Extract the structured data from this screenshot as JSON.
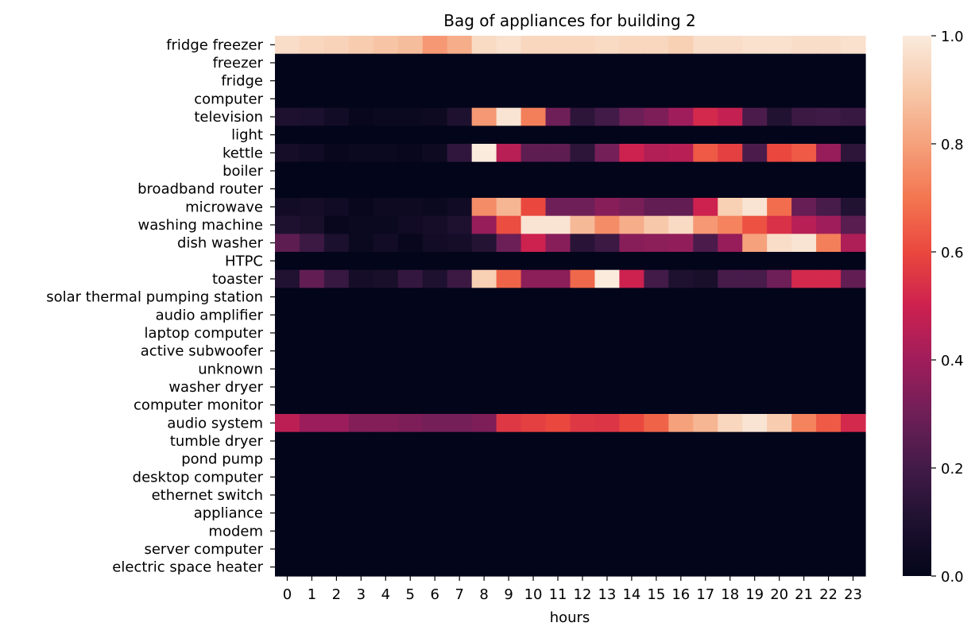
{
  "chart_data": {
    "type": "heatmap",
    "title": "Bag of appliances for building 2",
    "xlabel": "hours",
    "ylabel": "",
    "x": [
      "0",
      "1",
      "2",
      "3",
      "4",
      "5",
      "6",
      "7",
      "8",
      "9",
      "10",
      "11",
      "12",
      "13",
      "14",
      "15",
      "16",
      "17",
      "18",
      "19",
      "20",
      "21",
      "22",
      "23"
    ],
    "y": [
      "fridge freezer",
      "freezer",
      "fridge",
      "computer",
      "television",
      "light",
      "kettle",
      "boiler",
      "broadband router",
      "microwave",
      "washing machine",
      "dish washer",
      "HTPC",
      "toaster",
      "solar thermal pumping station",
      "audio amplifier",
      "laptop computer",
      "active subwoofer",
      "unknown",
      "washer dryer",
      "computer monitor",
      "audio system",
      "tumble dryer",
      "pond pump",
      "desktop computer",
      "ethernet switch",
      "appliance",
      "modem",
      "server computer",
      "electric space heater"
    ],
    "values": [
      [
        0.96,
        0.94,
        0.93,
        0.91,
        0.89,
        0.87,
        0.78,
        0.83,
        0.95,
        0.97,
        0.94,
        0.94,
        0.94,
        0.95,
        0.94,
        0.94,
        0.92,
        0.96,
        0.96,
        0.97,
        0.97,
        0.96,
        0.96,
        0.97
      ],
      [
        0,
        0,
        0,
        0,
        0,
        0,
        0,
        0,
        0,
        0,
        0,
        0,
        0,
        0,
        0,
        0,
        0,
        0,
        0,
        0,
        0,
        0,
        0,
        0
      ],
      [
        0,
        0,
        0,
        0,
        0,
        0,
        0,
        0,
        0,
        0,
        0,
        0,
        0,
        0,
        0,
        0,
        0,
        0,
        0,
        0,
        0,
        0,
        0,
        0
      ],
      [
        0,
        0,
        0,
        0,
        0,
        0,
        0,
        0,
        0,
        0,
        0,
        0,
        0,
        0,
        0,
        0,
        0,
        0,
        0,
        0,
        0,
        0,
        0,
        0
      ],
      [
        0.1,
        0.09,
        0.06,
        0.02,
        0.03,
        0.03,
        0.04,
        0.1,
        0.78,
        0.98,
        0.72,
        0.3,
        0.14,
        0.2,
        0.29,
        0.33,
        0.4,
        0.52,
        0.48,
        0.22,
        0.11,
        0.18,
        0.19,
        0.17
      ],
      [
        0,
        0,
        0,
        0,
        0,
        0,
        0,
        0,
        0,
        0,
        0,
        0,
        0,
        0,
        0,
        0,
        0,
        0,
        0,
        0,
        0,
        0,
        0,
        0
      ],
      [
        0.07,
        0.05,
        0.02,
        0.03,
        0.03,
        0.02,
        0.04,
        0.15,
        1.0,
        0.45,
        0.26,
        0.26,
        0.14,
        0.31,
        0.5,
        0.44,
        0.45,
        0.64,
        0.58,
        0.22,
        0.6,
        0.64,
        0.38,
        0.14
      ],
      [
        0,
        0,
        0,
        0,
        0,
        0,
        0,
        0,
        0,
        0,
        0,
        0,
        0,
        0,
        0,
        0,
        0,
        0,
        0,
        0,
        0,
        0,
        0,
        0
      ],
      [
        0,
        0,
        0,
        0,
        0,
        0,
        0,
        0,
        0,
        0,
        0,
        0,
        0,
        0,
        0,
        0,
        0,
        0,
        0,
        0,
        0,
        0,
        0,
        0
      ],
      [
        0.06,
        0.07,
        0.05,
        0.02,
        0.04,
        0.04,
        0.03,
        0.05,
        0.75,
        0.85,
        0.6,
        0.3,
        0.3,
        0.35,
        0.32,
        0.27,
        0.27,
        0.5,
        0.92,
        0.98,
        0.68,
        0.28,
        0.21,
        0.11
      ],
      [
        0.1,
        0.08,
        0.02,
        0.03,
        0.03,
        0.05,
        0.07,
        0.1,
        0.38,
        0.61,
        0.98,
        0.98,
        0.86,
        0.75,
        0.83,
        0.9,
        0.95,
        0.78,
        0.73,
        0.62,
        0.54,
        0.45,
        0.4,
        0.25
      ],
      [
        0.26,
        0.18,
        0.09,
        0.03,
        0.06,
        0.02,
        0.06,
        0.07,
        0.12,
        0.29,
        0.5,
        0.35,
        0.13,
        0.18,
        0.35,
        0.36,
        0.37,
        0.22,
        0.38,
        0.8,
        0.96,
        0.98,
        0.72,
        0.43
      ],
      [
        0,
        0,
        0,
        0,
        0,
        0,
        0,
        0,
        0,
        0,
        0,
        0,
        0,
        0,
        0,
        0,
        0,
        0,
        0,
        0,
        0,
        0,
        0,
        0
      ],
      [
        0.11,
        0.27,
        0.17,
        0.07,
        0.08,
        0.16,
        0.1,
        0.18,
        0.92,
        0.66,
        0.36,
        0.36,
        0.67,
        1.0,
        0.5,
        0.2,
        0.1,
        0.08,
        0.21,
        0.21,
        0.3,
        0.52,
        0.52,
        0.27
      ],
      [
        0,
        0,
        0,
        0,
        0,
        0,
        0,
        0,
        0,
        0,
        0,
        0,
        0,
        0,
        0,
        0,
        0,
        0,
        0,
        0,
        0,
        0,
        0,
        0
      ],
      [
        0,
        0,
        0,
        0,
        0,
        0,
        0,
        0,
        0,
        0,
        0,
        0,
        0,
        0,
        0,
        0,
        0,
        0,
        0,
        0,
        0,
        0,
        0,
        0
      ],
      [
        0,
        0,
        0,
        0,
        0,
        0,
        0,
        0,
        0,
        0,
        0,
        0,
        0,
        0,
        0,
        0,
        0,
        0,
        0,
        0,
        0,
        0,
        0,
        0
      ],
      [
        0,
        0,
        0,
        0,
        0,
        0,
        0,
        0,
        0,
        0,
        0,
        0,
        0,
        0,
        0,
        0,
        0,
        0,
        0,
        0,
        0,
        0,
        0,
        0
      ],
      [
        0,
        0,
        0,
        0,
        0,
        0,
        0,
        0,
        0,
        0,
        0,
        0,
        0,
        0,
        0,
        0,
        0,
        0,
        0,
        0,
        0,
        0,
        0,
        0
      ],
      [
        0,
        0,
        0,
        0,
        0,
        0,
        0,
        0,
        0,
        0,
        0,
        0,
        0,
        0,
        0,
        0,
        0,
        0,
        0,
        0,
        0,
        0,
        0,
        0
      ],
      [
        0,
        0,
        0,
        0,
        0,
        0,
        0,
        0,
        0,
        0,
        0,
        0,
        0,
        0,
        0,
        0,
        0,
        0,
        0,
        0,
        0,
        0,
        0,
        0
      ],
      [
        0.46,
        0.39,
        0.39,
        0.34,
        0.34,
        0.33,
        0.31,
        0.31,
        0.33,
        0.56,
        0.58,
        0.6,
        0.56,
        0.55,
        0.6,
        0.66,
        0.8,
        0.85,
        0.94,
        0.98,
        0.91,
        0.73,
        0.64,
        0.52
      ],
      [
        0,
        0,
        0,
        0,
        0,
        0,
        0,
        0,
        0,
        0,
        0,
        0,
        0,
        0,
        0,
        0,
        0,
        0,
        0,
        0,
        0,
        0,
        0,
        0
      ],
      [
        0,
        0,
        0,
        0,
        0,
        0,
        0,
        0,
        0,
        0,
        0,
        0,
        0,
        0,
        0,
        0,
        0,
        0,
        0,
        0,
        0,
        0,
        0,
        0
      ],
      [
        0,
        0,
        0,
        0,
        0,
        0,
        0,
        0,
        0,
        0,
        0,
        0,
        0,
        0,
        0,
        0,
        0,
        0,
        0,
        0,
        0,
        0,
        0,
        0
      ],
      [
        0,
        0,
        0,
        0,
        0,
        0,
        0,
        0,
        0,
        0,
        0,
        0,
        0,
        0,
        0,
        0,
        0,
        0,
        0,
        0,
        0,
        0,
        0,
        0
      ],
      [
        0,
        0,
        0,
        0,
        0,
        0,
        0,
        0,
        0,
        0,
        0,
        0,
        0,
        0,
        0,
        0,
        0,
        0,
        0,
        0,
        0,
        0,
        0,
        0
      ],
      [
        0,
        0,
        0,
        0,
        0,
        0,
        0,
        0,
        0,
        0,
        0,
        0,
        0,
        0,
        0,
        0,
        0,
        0,
        0,
        0,
        0,
        0,
        0,
        0
      ],
      [
        0,
        0,
        0,
        0,
        0,
        0,
        0,
        0,
        0,
        0,
        0,
        0,
        0,
        0,
        0,
        0,
        0,
        0,
        0,
        0,
        0,
        0,
        0,
        0
      ],
      [
        0,
        0,
        0,
        0,
        0,
        0,
        0,
        0,
        0,
        0,
        0,
        0,
        0,
        0,
        0,
        0,
        0,
        0,
        0,
        0,
        0,
        0,
        0,
        0
      ]
    ],
    "vmin": 0,
    "vmax": 1,
    "colormap": "rocket",
    "colorbar_ticks": [
      "0.0",
      "0.2",
      "0.4",
      "0.6",
      "0.8",
      "1.0"
    ],
    "grid": false,
    "legend": "colorbar-right"
  }
}
